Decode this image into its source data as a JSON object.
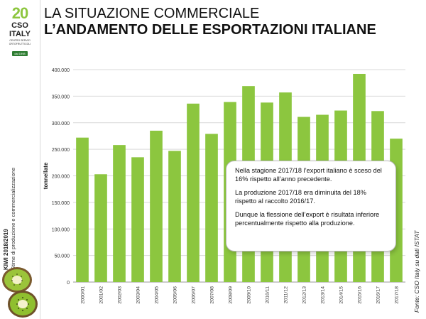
{
  "header": {
    "title_line1": "LA SITUAZIONE COMMERCIALE",
    "title_line2": "L’ANDAMENTO DELLE ESPORTAZIONI ITALIANE"
  },
  "logo": {
    "number": "20",
    "name_line1": "CSO",
    "name_line2": "ITALY",
    "sub_line1": "CENTRO SERVIZI",
    "sub_line2": "ORTOFRUTTICOLI",
    "badge": "dal 1998"
  },
  "sidebar": {
    "title": "KIWI 2018/2019",
    "subtitle": "Stime di produzione e commercializzazione",
    "image_icon": "kiwi-halves-icon"
  },
  "callout": {
    "paragraph_1": "Nella stagione 2017/18  l’export italiano è sceso del 16% rispetto all’anno precedente.",
    "paragraph_2": "La produzione 2017/18 era diminuita del 18% rispetto al raccolto 2016/17.",
    "paragraph_3": "Dunque la flessione dell’export è risultata inferiore percentualmente rispetto alla produzione."
  },
  "source": "Fonte: CSO Italy su dati ISTAT",
  "colors": {
    "bar": "#8cc63f",
    "grid": "#d9d9d9",
    "accent_red": "#e31d3b"
  },
  "chart_data": {
    "type": "bar",
    "categories": [
      "2000/01",
      "2001/02",
      "2002/03",
      "2003/04",
      "2004/05",
      "2005/06",
      "2006/07",
      "2007/08",
      "2008/09",
      "2009/10",
      "2010/11",
      "2011/12",
      "2012/13",
      "2013/14",
      "2014/15",
      "2015/16",
      "2016/17",
      "2017/18"
    ],
    "values": [
      272000,
      203000,
      258000,
      235000,
      285000,
      247000,
      336000,
      279000,
      339000,
      369000,
      338000,
      357000,
      311000,
      315000,
      323000,
      392000,
      322000,
      270000
    ],
    "ylabel": "tonnellate",
    "ylim": [
      0,
      400000
    ],
    "yticks": [
      0,
      50000,
      100000,
      150000,
      200000,
      250000,
      300000,
      350000,
      400000
    ],
    "ytick_labels": [
      "0",
      "50.000",
      "100.000",
      "150.000",
      "200.000",
      "250.000",
      "300.000",
      "350.000",
      "400.000"
    ],
    "grid": true,
    "legend": "none"
  }
}
